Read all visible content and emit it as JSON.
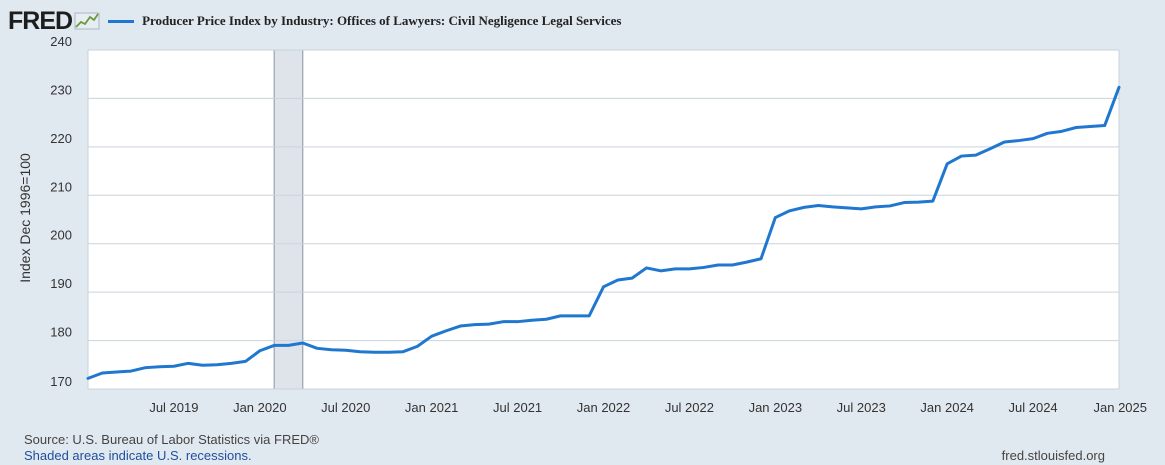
{
  "header": {
    "logo_text": "FRED",
    "logo_icon": "fred-chart-icon",
    "series_title": "Producer Price Index by Industry: Offices of Lawyers: Civil Negligence Legal Services"
  },
  "footer": {
    "source": "Source: U.S. Bureau of Labor Statistics via FRED®",
    "recession_note": "Shaded areas indicate U.S. recessions.",
    "site": "fred.stlouisfed.org"
  },
  "colors": {
    "line": "#1f77d0",
    "plot_bg": "#ffffff",
    "page_bg": "#e1e9f0",
    "grid": "#c9d3dc",
    "recession": "#dfe4ea"
  },
  "chart_data": {
    "type": "line",
    "title": "Producer Price Index by Industry: Offices of Lawyers: Civil Negligence Legal Services",
    "ylabel": "Index Dec 1996=100",
    "xlabel": "",
    "ylim": [
      170,
      240
    ],
    "yticks": [
      170,
      180,
      190,
      200,
      210,
      220,
      230,
      240
    ],
    "grid": true,
    "x_start": "2019-01",
    "xticks": [
      {
        "month_index": 6,
        "label": "Jul 2019"
      },
      {
        "month_index": 12,
        "label": "Jan 2020"
      },
      {
        "month_index": 18,
        "label": "Jul 2020"
      },
      {
        "month_index": 24,
        "label": "Jan 2021"
      },
      {
        "month_index": 30,
        "label": "Jul 2021"
      },
      {
        "month_index": 36,
        "label": "Jan 2022"
      },
      {
        "month_index": 42,
        "label": "Jul 2022"
      },
      {
        "month_index": 48,
        "label": "Jan 2023"
      },
      {
        "month_index": 54,
        "label": "Jul 2023"
      },
      {
        "month_index": 60,
        "label": "Jan 2024"
      },
      {
        "month_index": 66,
        "label": "Jul 2024"
      },
      {
        "month_index": 72,
        "label": "Jan 2025"
      }
    ],
    "recessions": [
      {
        "start_month_index": 13,
        "end_month_index": 15
      }
    ],
    "series": [
      {
        "name": "Producer Price Index by Industry: Offices of Lawyers: Civil Negligence Legal Services",
        "values": [
          172.2,
          173.3,
          173.5,
          173.7,
          174.4,
          174.6,
          174.7,
          175.3,
          174.9,
          175.0,
          175.3,
          175.7,
          177.9,
          179.0,
          179.0,
          179.5,
          178.4,
          178.1,
          178.0,
          177.7,
          177.6,
          177.6,
          177.7,
          178.8,
          180.9,
          182.0,
          183.0,
          183.3,
          183.4,
          183.9,
          183.9,
          184.2,
          184.4,
          185.1,
          185.1,
          185.1,
          191.1,
          192.5,
          192.9,
          195.0,
          194.4,
          194.8,
          194.8,
          195.1,
          195.6,
          195.6,
          196.2,
          196.9,
          205.4,
          206.8,
          207.5,
          207.9,
          207.6,
          207.4,
          207.2,
          207.6,
          207.8,
          208.5,
          208.6,
          208.8,
          216.5,
          218.1,
          218.3,
          219.6,
          221.0,
          221.3,
          221.7,
          222.8,
          223.2,
          224.0,
          224.2,
          224.4,
          232.3
        ]
      }
    ]
  }
}
